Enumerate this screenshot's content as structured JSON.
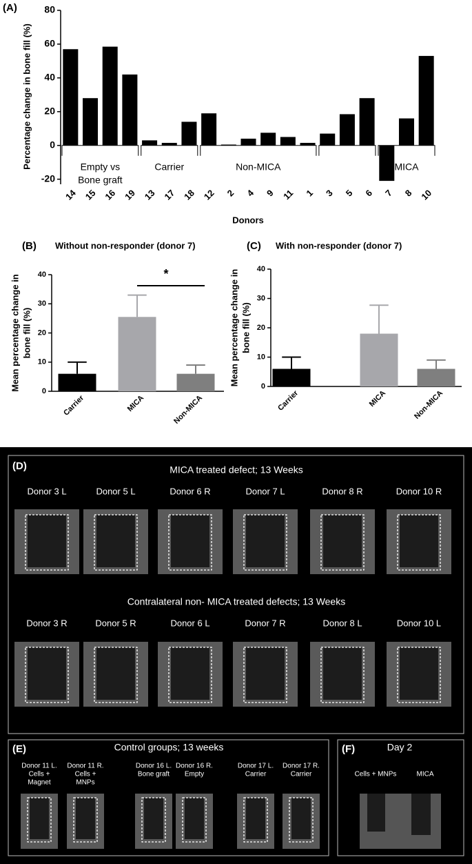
{
  "chart_data": [
    {
      "type": "bar",
      "panel": "(A)",
      "y_label": "Percentage change in bone fill (%)",
      "x_label": "Donors",
      "categories": [
        "14",
        "15",
        "16",
        "19",
        "13",
        "17",
        "18",
        "12",
        "2",
        "4",
        "9",
        "11",
        "1",
        "3",
        "5",
        "6",
        "7",
        "8",
        "10"
      ],
      "values": [
        57,
        28,
        58.5,
        42,
        3,
        1.5,
        14,
        19,
        0.5,
        4,
        7.5,
        5,
        1.5,
        7,
        18.5,
        28,
        -21,
        16,
        53
      ],
      "color": "#000000",
      "ylim": [
        -23,
        80
      ],
      "yticks": [
        -20,
        0,
        20,
        40,
        60,
        80
      ],
      "group_labels": [
        [
          "Empty vs",
          "Bone graft"
        ],
        [
          "Carrier"
        ],
        [
          "Non-MICA"
        ],
        [
          "MICA"
        ]
      ]
    },
    {
      "type": "bar",
      "panel": "(B)",
      "title": "Without non-responder (donor 7)",
      "y_label": [
        "Mean percentage change in",
        "bone fill (%)"
      ],
      "categories": [
        "Carrier",
        "MICA",
        "Non-MICA"
      ],
      "values": [
        6,
        25.5,
        6
      ],
      "errors": [
        4,
        7.5,
        3
      ],
      "colors": [
        "#000000",
        "#a7a7ab",
        "#7f7f7f"
      ],
      "ylim": [
        0,
        40
      ],
      "yticks": [
        0,
        10,
        20,
        30,
        40
      ],
      "significance": "*"
    },
    {
      "type": "bar",
      "panel": "(C)",
      "title": "With non-responder (donor 7)",
      "y_label": [
        "Mean percentage change in",
        "bone fill (%)"
      ],
      "categories": [
        "Carrier",
        "MICA",
        "Non-MICA"
      ],
      "values": [
        6,
        18,
        6
      ],
      "errors": [
        4,
        9.7,
        3
      ],
      "colors": [
        "#000000",
        "#a7a7ab",
        "#7f7f7f"
      ],
      "ylim": [
        0,
        40
      ],
      "yticks": [
        0,
        10,
        20,
        30,
        40
      ]
    }
  ],
  "panel_d": {
    "label": "(D)",
    "rows": [
      {
        "title": "MICA treated defect; 13 Weeks",
        "donors": [
          "Donor 3 L",
          "Donor 5 L",
          "Donor 6 R",
          "Donor 7 L",
          "Donor 8 R",
          "Donor 10 R"
        ]
      },
      {
        "title": "Contralateral non- MICA treated defects; 13 Weeks",
        "donors": [
          "Donor 3 R",
          "Donor 5 R",
          "Donor 6 L",
          "Donor 7 R",
          "Donor 8 L",
          "Donor 10 L"
        ]
      }
    ]
  },
  "panel_e": {
    "label": "(E)",
    "title": "Control groups; 13 weeks",
    "items": [
      [
        "Donor  11 L.",
        "Cells +",
        "Magnet"
      ],
      [
        "Donor 11 R.",
        "Cells +",
        "MNPs"
      ],
      [
        "Donor 16 L.",
        "Bone graft"
      ],
      [
        "Donor 16 R.",
        "Empty"
      ],
      [
        "Donor 17 L.",
        "Carrier"
      ],
      [
        "Donor 17 R.",
        "Carrier"
      ]
    ]
  },
  "panel_f": {
    "label": "(F)",
    "title": "Day 2",
    "items": [
      "Cells + MNPs",
      "MICA"
    ]
  }
}
